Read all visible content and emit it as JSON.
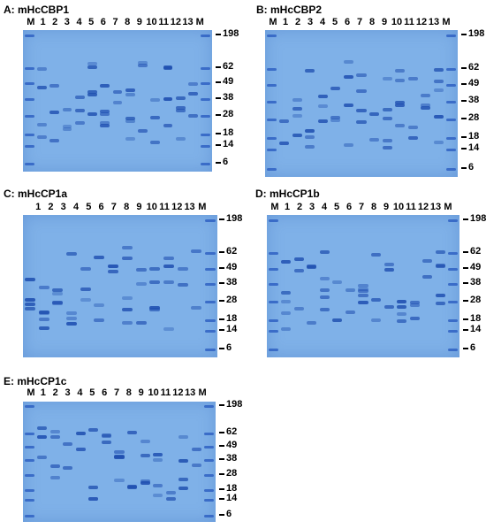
{
  "lane_labels": [
    "M",
    "1",
    "2",
    "3",
    "4",
    "5",
    "6",
    "7",
    "8",
    "9",
    "10",
    "11",
    "12",
    "13",
    "M"
  ],
  "lane_labels_c": [
    "1",
    "2",
    "3",
    "4",
    "5",
    "6",
    "7",
    "8",
    "9",
    "10",
    "11",
    "12",
    "13",
    "M"
  ],
  "markers": [
    "198",
    "62",
    "49",
    "38",
    "28",
    "18",
    "14",
    "6"
  ],
  "panels": [
    {
      "key": "A",
      "title": "A: mHcCBP1"
    },
    {
      "key": "B",
      "title": "B: mHcCBP2"
    },
    {
      "key": "C",
      "title": "C: mHcCP1a"
    },
    {
      "key": "D",
      "title": "D: mHcCP1b"
    },
    {
      "key": "E",
      "title": "E: mHcCP1c"
    }
  ],
  "colors": {
    "gel": "#7fb1e8",
    "band": "#1f4fb0"
  }
}
